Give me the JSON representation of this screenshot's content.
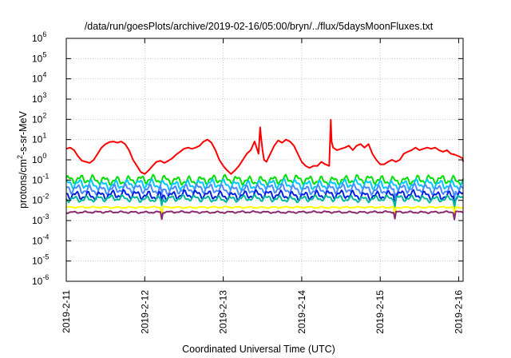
{
  "chart_data": {
    "type": "line",
    "title": "/data/run/goesPlots/archive/2019-02-16/05:00/bryn/../flux/5daysMoonFluxes.txt",
    "xlabel": "Coordinated Universal Time (UTC)",
    "ylabel": {
      "pre": "protons/cm",
      "sup": "2",
      "post": "-s-sr-MeV"
    },
    "y_scale": "log",
    "ylim": [
      1e-06,
      1000000.0
    ],
    "xlim": [
      "2019-02-11 00:00",
      "2019-02-16 05:00"
    ],
    "y_ticks": [
      {
        "value": -6,
        "base": "10",
        "exp": "-6"
      },
      {
        "value": -5,
        "base": "10",
        "exp": "-5"
      },
      {
        "value": -4,
        "base": "10",
        "exp": "-4"
      },
      {
        "value": -3,
        "base": "10",
        "exp": "-3"
      },
      {
        "value": -2,
        "base": "10",
        "exp": "-2"
      },
      {
        "value": -1,
        "base": "10",
        "exp": "-1"
      },
      {
        "value": 0,
        "base": "10",
        "exp": "0"
      },
      {
        "value": 1,
        "base": "10",
        "exp": "1"
      },
      {
        "value": 2,
        "base": "10",
        "exp": "2"
      },
      {
        "value": 3,
        "base": "10",
        "exp": "3"
      },
      {
        "value": 4,
        "base": "10",
        "exp": "4"
      },
      {
        "value": 5,
        "base": "10",
        "exp": "5"
      },
      {
        "value": 6,
        "base": "10",
        "exp": "6"
      }
    ],
    "x_ticks": [
      {
        "day": 0,
        "label": "2019-2-11"
      },
      {
        "day": 1,
        "label": "2019-2-12"
      },
      {
        "day": 2,
        "label": "2019-2-13"
      },
      {
        "day": 3,
        "label": "2019-2-14"
      },
      {
        "day": 4,
        "label": "2019-2-15"
      },
      {
        "day": 5,
        "label": "2019-2-16"
      }
    ],
    "grid": true,
    "series": [
      {
        "color": "#ff0000",
        "width": 2,
        "x": [
          0.0,
          0.05,
          0.1,
          0.15,
          0.2,
          0.25,
          0.3,
          0.35,
          0.4,
          0.45,
          0.5,
          0.55,
          0.6,
          0.65,
          0.7,
          0.75,
          0.8,
          0.85,
          0.9,
          0.95,
          1.0,
          1.05,
          1.1,
          1.15,
          1.2,
          1.25,
          1.3,
          1.35,
          1.4,
          1.45,
          1.5,
          1.55,
          1.6,
          1.65,
          1.7,
          1.75,
          1.8,
          1.85,
          1.9,
          1.95,
          2.0,
          2.05,
          2.1,
          2.15,
          2.2,
          2.25,
          2.3,
          2.35,
          2.4,
          2.45,
          2.47,
          2.48,
          2.5,
          2.52,
          2.55,
          2.6,
          2.65,
          2.7,
          2.75,
          2.8,
          2.85,
          2.9,
          2.95,
          3.0,
          3.05,
          3.1,
          3.15,
          3.2,
          3.25,
          3.3,
          3.35,
          3.37,
          3.38,
          3.4,
          3.45,
          3.5,
          3.55,
          3.6,
          3.65,
          3.7,
          3.75,
          3.8,
          3.85,
          3.9,
          3.95,
          4.0,
          4.05,
          4.1,
          4.15,
          4.2,
          4.25,
          4.3,
          4.35,
          4.4,
          4.45,
          4.5,
          4.55,
          4.6,
          4.65,
          4.7,
          4.75,
          4.8,
          4.85,
          4.9,
          4.95,
          5.0,
          5.05,
          5.1,
          5.15,
          5.2
        ],
        "y": [
          3.5,
          4,
          3,
          1.5,
          0.9,
          0.8,
          0.7,
          1,
          2,
          4,
          6,
          7.5,
          8,
          7,
          8,
          6,
          3,
          1,
          0.5,
          0.25,
          0.2,
          0.3,
          0.5,
          0.8,
          0.9,
          0.7,
          0.9,
          1.2,
          1.8,
          2.5,
          3.5,
          4,
          3.5,
          4,
          5,
          8,
          10,
          7,
          3,
          1,
          0.5,
          0.3,
          0.2,
          0.3,
          0.5,
          1,
          2,
          3,
          8,
          2,
          40,
          15,
          3,
          1,
          0.8,
          2,
          5,
          9,
          7,
          10,
          8,
          5,
          2,
          0.8,
          0.5,
          0.4,
          0.5,
          0.5,
          0.8,
          0.6,
          0.5,
          95,
          8,
          4,
          3,
          3.5,
          4,
          5,
          3,
          5,
          6,
          4,
          6,
          2,
          1,
          0.6,
          0.6,
          0.8,
          1,
          0.8,
          1,
          2,
          2.5,
          3,
          4,
          3,
          3.5,
          4,
          3.5,
          4,
          3,
          2.5,
          3,
          2,
          1.8,
          1.5,
          1.2,
          1.0,
          0.9,
          0.8
        ]
      },
      {
        "color": "#00e000",
        "width": 2,
        "base": 0.1,
        "amp": 0.28,
        "phase": 0.3
      },
      {
        "color": "#00c8ff",
        "width": 2,
        "base": 0.06,
        "amp": 0.3,
        "phase": 1.1
      },
      {
        "color": "#4a8aff",
        "width": 2,
        "base": 0.035,
        "amp": 0.3,
        "phase": 2.0
      },
      {
        "color": "#0020e0",
        "width": 2,
        "base": 0.018,
        "amp": 0.28,
        "phase": 2.7
      },
      {
        "color": "#00b89a",
        "width": 2,
        "base": 0.012,
        "amp": 0.2,
        "phase": 3.5
      },
      {
        "color": "#ffff00",
        "width": 2,
        "base": 0.0045,
        "amp": 0.05,
        "phase": 0.0
      },
      {
        "color": "#8b2a6e",
        "width": 2,
        "base": 0.0026,
        "amp": 0.06,
        "phase": 4.2
      }
    ]
  }
}
